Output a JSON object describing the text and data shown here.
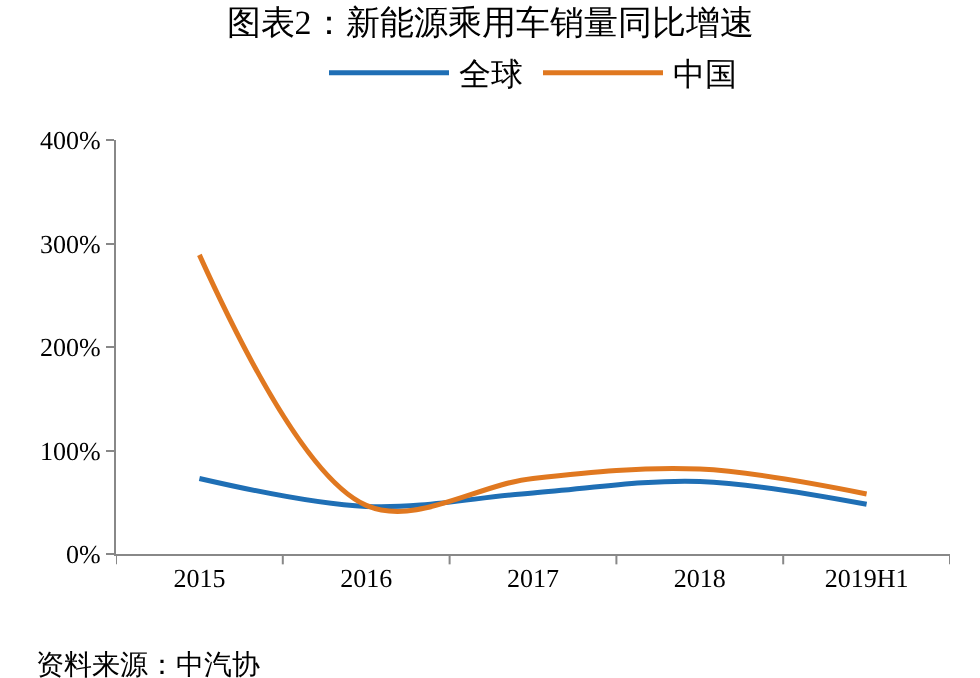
{
  "chart_data": {
    "type": "line",
    "title": "图表2：新能源乘用车销量同比增速",
    "categories": [
      "2015",
      "2016",
      "2017",
      "2018",
      "2019H1"
    ],
    "series": [
      {
        "name": "全球",
        "color": "#1f6fb5",
        "values": [
          73,
          46,
          59,
          70,
          48
        ]
      },
      {
        "name": "中国",
        "color": "#e07820",
        "values": [
          289,
          47,
          73,
          82,
          58
        ]
      }
    ],
    "ylim": [
      0,
      400
    ],
    "yticks": [
      {
        "value": 0,
        "label": "0%"
      },
      {
        "value": 100,
        "label": "100%"
      },
      {
        "value": 200,
        "label": "200%"
      },
      {
        "value": 300,
        "label": "300%"
      },
      {
        "value": 400,
        "label": "400%"
      }
    ],
    "grid": false,
    "legend": "top",
    "marker": "none",
    "line_style": "solid",
    "annotations": [
      "资料来源：中汽协"
    ]
  }
}
